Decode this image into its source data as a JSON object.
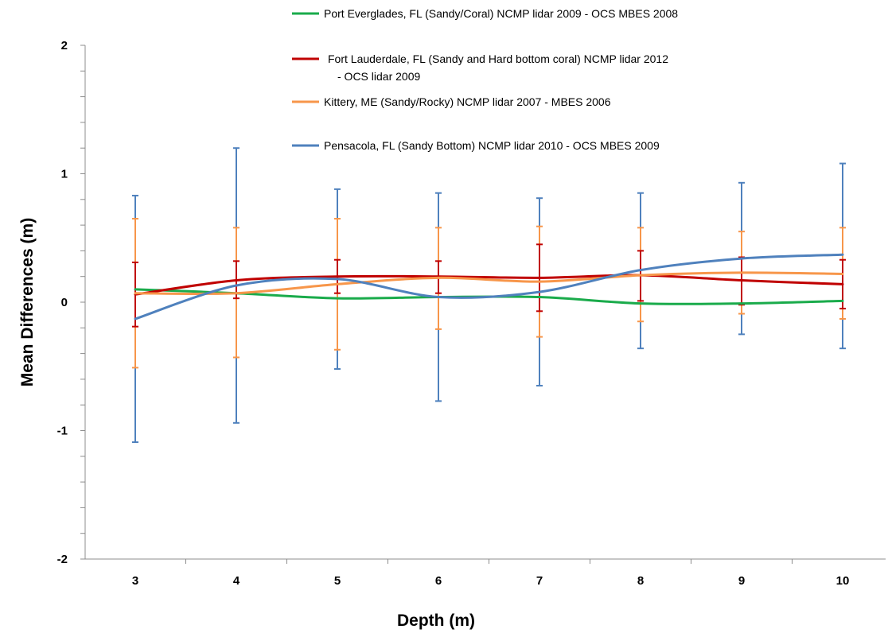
{
  "chart_data": {
    "type": "line",
    "xlabel": "Depth (m)",
    "ylabel": "Mean Differences (m)",
    "x": [
      3,
      4,
      5,
      6,
      7,
      8,
      9,
      10
    ],
    "ylim": [
      -2,
      2
    ],
    "yticks": [
      "2",
      "1",
      "0",
      "-1",
      "-2"
    ],
    "ytick_values": [
      2,
      1,
      0,
      -1,
      -2
    ],
    "grid": false,
    "legend_position": "top",
    "series": [
      {
        "name": "Port Everglades, FL (Sandy/Coral) NCMP lidar 2009 - OCS MBES 2008",
        "color": "#1aab4b",
        "values": [
          0.1,
          0.07,
          0.03,
          0.04,
          0.04,
          -0.01,
          -0.01,
          0.01
        ],
        "error_low": null,
        "error_high": null
      },
      {
        "name": "Fort Lauderdale, FL (Sandy and Hard bottom coral) NCMP lidar 2012 - OCS lidar 2009",
        "name_lines": [
          "Fort Lauderdale, FL (Sandy and Hard bottom coral) NCMP lidar 2012",
          "- OCS lidar 2009"
        ],
        "color": "#c00000",
        "values": [
          0.06,
          0.17,
          0.2,
          0.2,
          0.19,
          0.21,
          0.17,
          0.14
        ],
        "error_low": [
          -0.19,
          0.03,
          0.07,
          0.07,
          -0.07,
          0.01,
          -0.02,
          -0.05
        ],
        "error_high": [
          0.31,
          0.32,
          0.33,
          0.32,
          0.45,
          0.4,
          0.35,
          0.33
        ]
      },
      {
        "name": "Kittery, ME (Sandy/Rocky) NCMP lidar 2007 - MBES 2006",
        "color": "#f7964a",
        "values": [
          0.07,
          0.07,
          0.14,
          0.19,
          0.16,
          0.21,
          0.23,
          0.22
        ],
        "error_low": [
          -0.51,
          -0.43,
          -0.37,
          -0.21,
          -0.27,
          -0.15,
          -0.09,
          -0.13
        ],
        "error_high": [
          0.65,
          0.58,
          0.65,
          0.58,
          0.59,
          0.58,
          0.55,
          0.58
        ]
      },
      {
        "name": "Pensacola, FL (Sandy Bottom) NCMP lidar 2010 - OCS MBES 2009",
        "color": "#4f81bd",
        "values": [
          -0.13,
          0.13,
          0.18,
          0.04,
          0.08,
          0.25,
          0.34,
          0.37
        ],
        "error_low": [
          -1.09,
          -0.94,
          -0.52,
          -0.77,
          -0.65,
          -0.36,
          -0.25,
          -0.36
        ],
        "error_high": [
          0.83,
          1.2,
          0.88,
          0.85,
          0.81,
          0.85,
          0.93,
          1.08
        ]
      }
    ]
  }
}
